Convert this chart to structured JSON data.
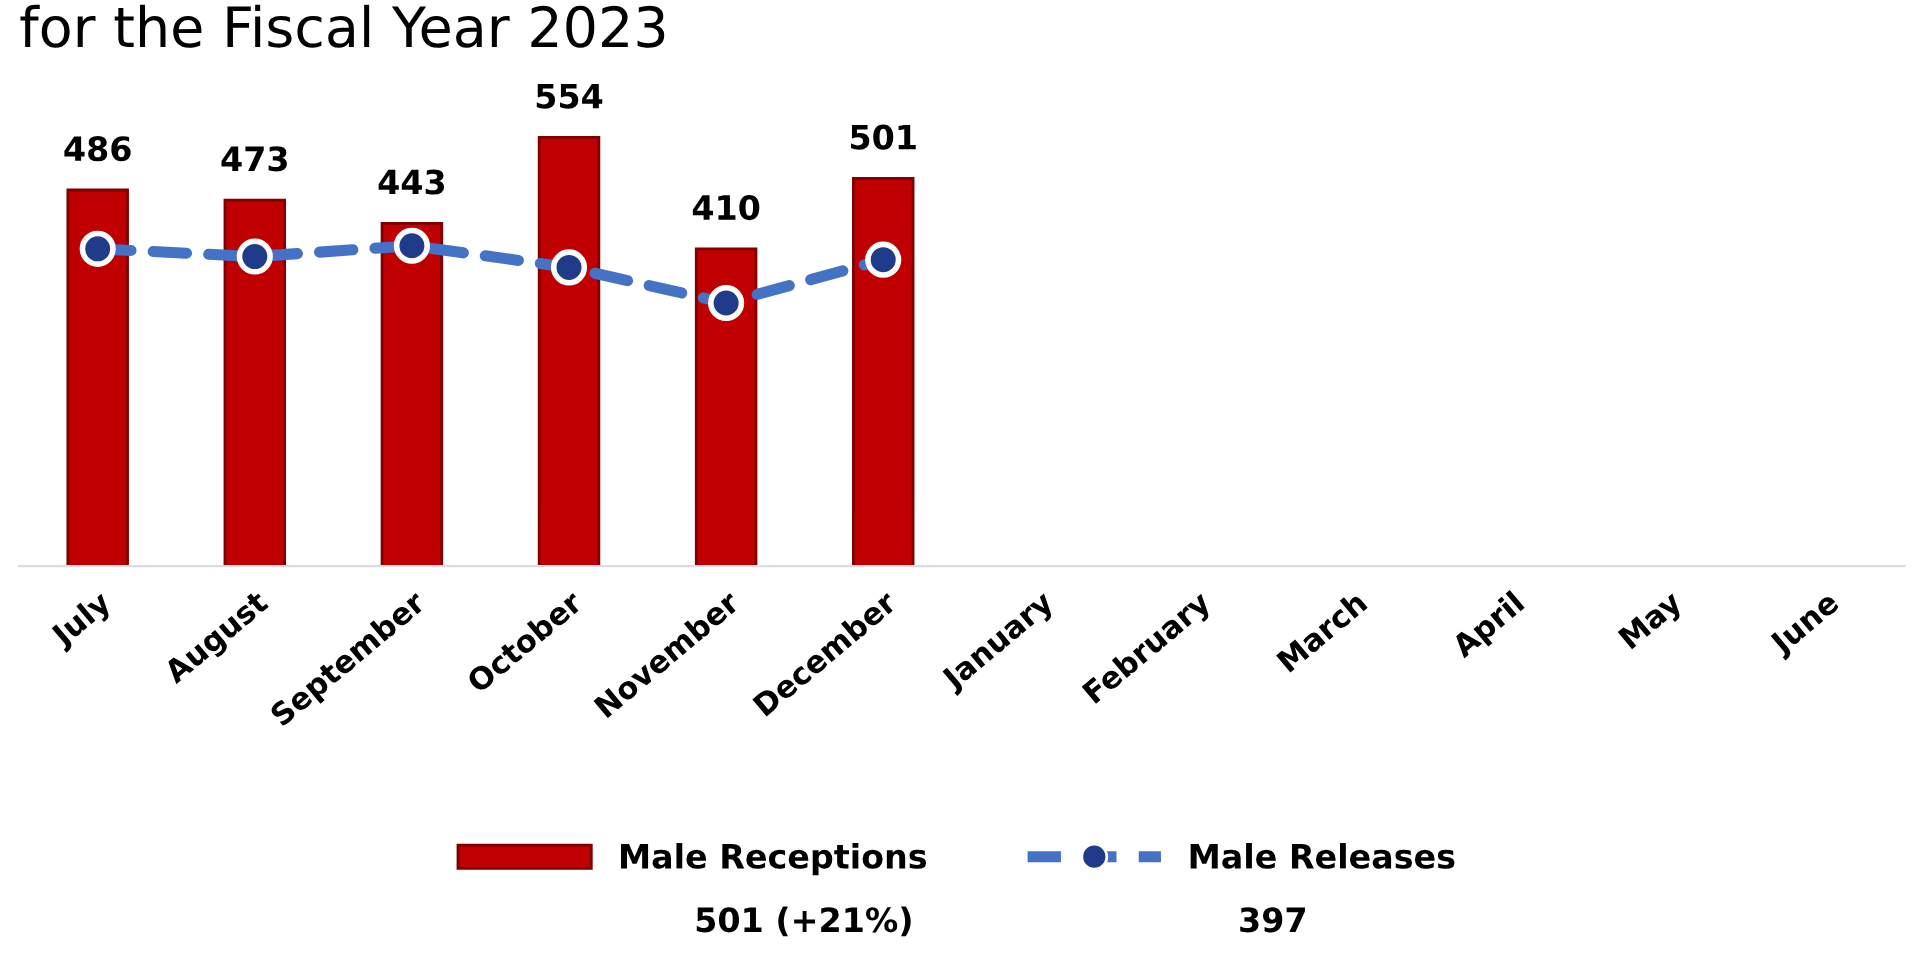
{
  "chart_data": {
    "type": "bar",
    "title": "for the Fiscal Year 2023",
    "categories": [
      "July",
      "August",
      "September",
      "October",
      "November",
      "December",
      "January",
      "February",
      "March",
      "April",
      "May",
      "June"
    ],
    "series": [
      {
        "name": "Male Receptions",
        "color": "#c00000",
        "values": [
          486,
          473,
          443,
          554,
          410,
          501,
          null,
          null,
          null,
          null,
          null,
          null
        ],
        "data_labels": true
      },
      {
        "name": "Male Releases",
        "type": "line",
        "color": "#4472c4",
        "line_style": "dashed",
        "marker": "circle",
        "values": [
          410,
          400,
          414,
          386,
          340,
          396,
          null,
          null,
          null,
          null,
          null,
          null
        ]
      }
    ],
    "tick_labels": "x",
    "grid": false,
    "legend": "bottom",
    "annotations": [
      "501 (+21%)",
      "397"
    ]
  }
}
